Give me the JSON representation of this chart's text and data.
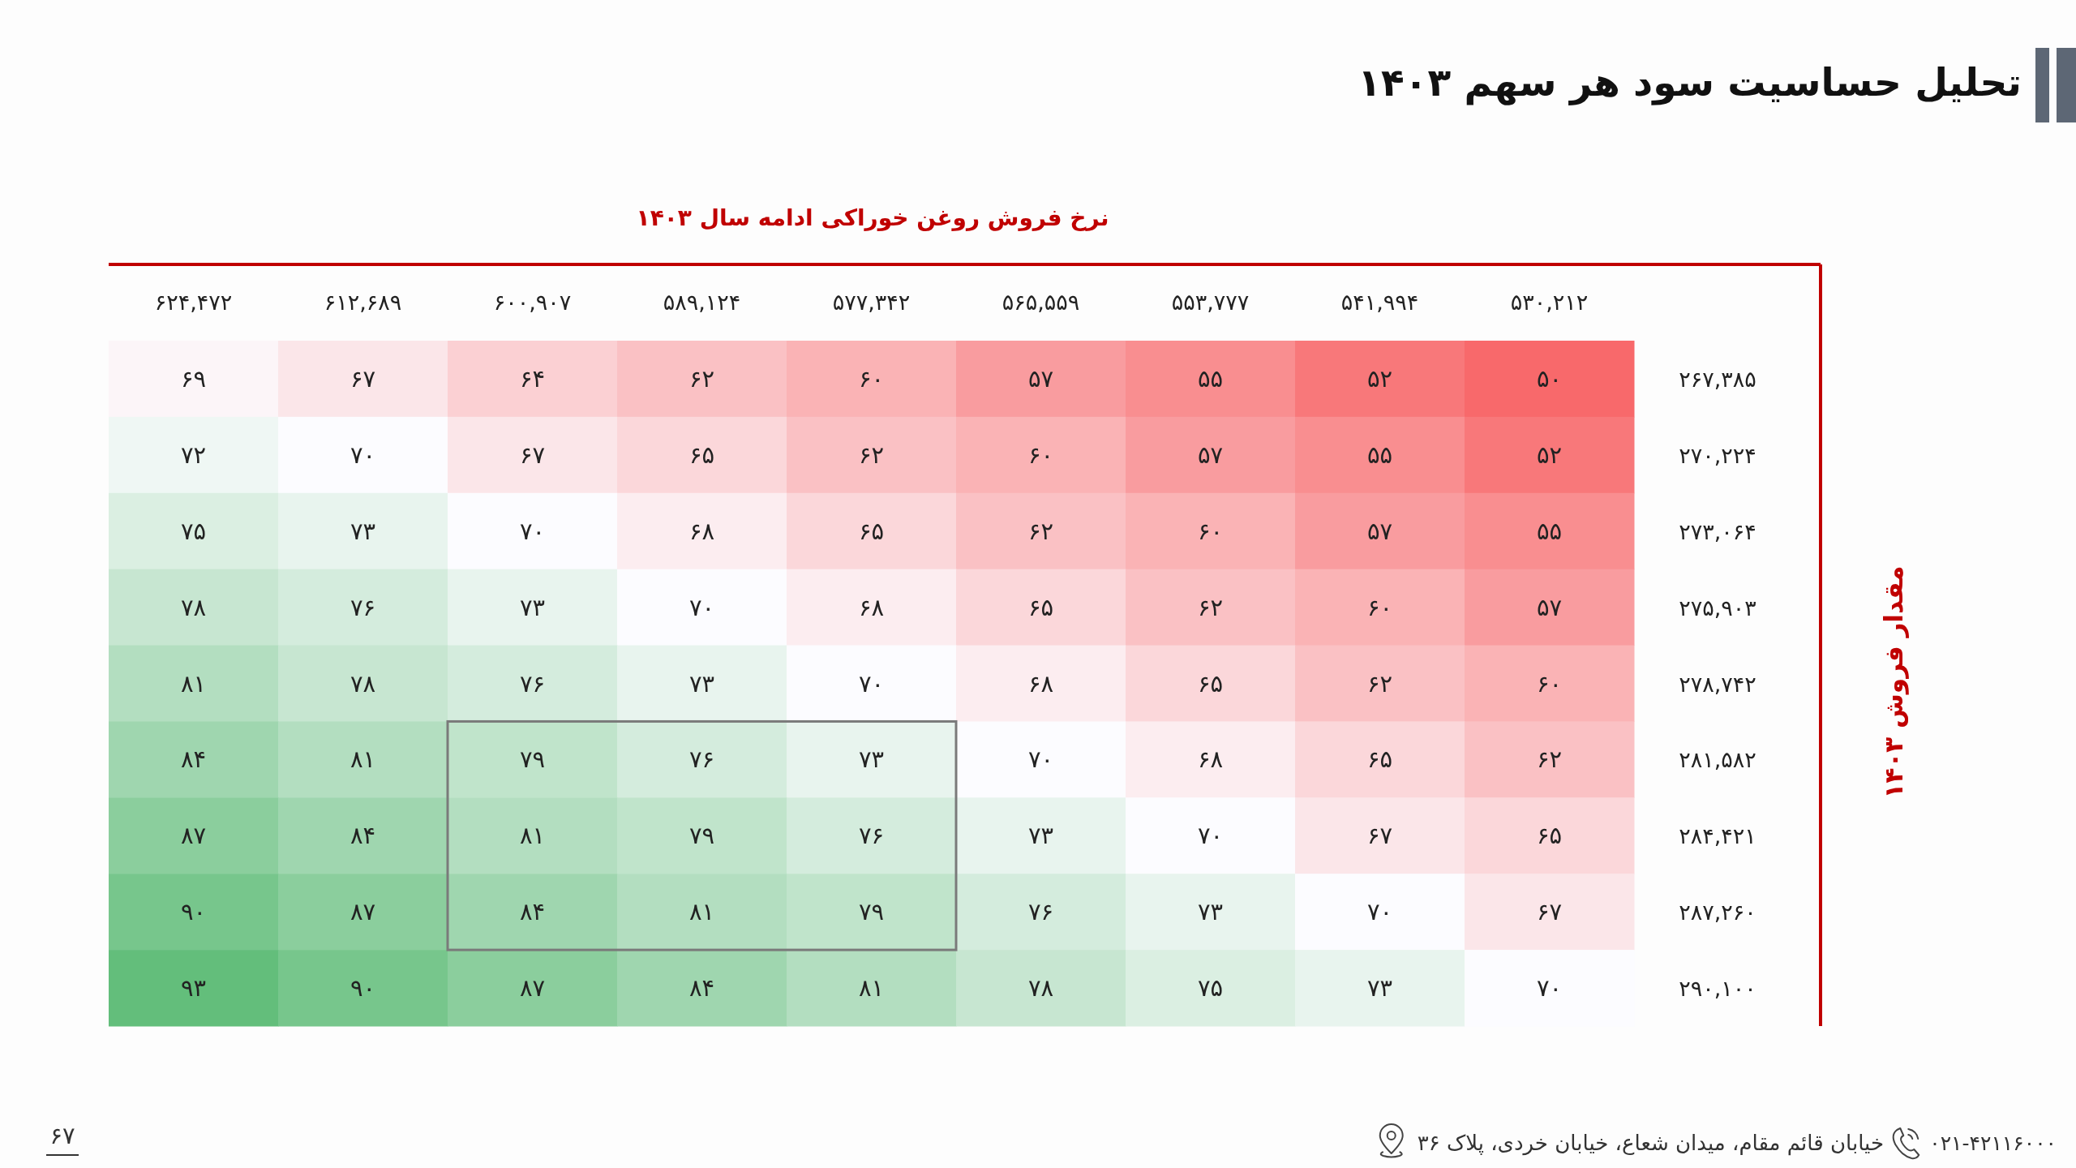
{
  "chart_data": {
    "type": "heatmap",
    "title": "تحلیل حساسیت سود هر سهم ۱۴۰۳",
    "xlabel": "نرخ فروش روغن خوراکی ادامه سال ۱۴۰۳",
    "ylabel": "مقدار فروش ۱۴۰۳",
    "categories": [
      "۶۲۴,۴۷۲",
      "۶۱۲,۶۸۹",
      "۶۰۰,۹۰۷",
      "۵۸۹,۱۲۴",
      "۵۷۷,۳۴۲",
      "۵۶۵,۵۵۹",
      "۵۵۳,۷۷۷",
      "۵۴۱,۹۹۴",
      "۵۳۰,۲۱۲"
    ],
    "y_categories": [
      "۲۶۷,۳۸۵",
      "۲۷۰,۲۲۴",
      "۲۷۳,۰۶۴",
      "۲۷۵,۹۰۳",
      "۲۷۸,۷۴۲",
      "۲۸۱,۵۸۲",
      "۲۸۴,۴۲۱",
      "۲۸۷,۲۶۰",
      "۲۹۰,۱۰۰"
    ],
    "cells": [
      [
        69,
        67,
        64,
        62,
        60,
        57,
        55,
        52,
        50
      ],
      [
        72,
        70,
        67,
        65,
        62,
        60,
        57,
        55,
        52
      ],
      [
        75,
        73,
        70,
        68,
        65,
        62,
        60,
        57,
        55
      ],
      [
        78,
        76,
        73,
        70,
        68,
        65,
        62,
        60,
        57
      ],
      [
        81,
        78,
        76,
        73,
        70,
        68,
        65,
        62,
        60
      ],
      [
        84,
        81,
        79,
        76,
        73,
        70,
        68,
        65,
        62
      ],
      [
        87,
        84,
        81,
        79,
        76,
        73,
        70,
        67,
        65
      ],
      [
        90,
        87,
        84,
        81,
        79,
        76,
        73,
        70,
        67
      ],
      [
        93,
        90,
        87,
        84,
        81,
        78,
        75,
        73,
        70
      ]
    ],
    "cell_labels": [
      [
        "۶۹",
        "۶۷",
        "۶۴",
        "۶۲",
        "۶۰",
        "۵۷",
        "۵۵",
        "۵۲",
        "۵۰"
      ],
      [
        "۷۲",
        "۷۰",
        "۶۷",
        "۶۵",
        "۶۲",
        "۶۰",
        "۵۷",
        "۵۵",
        "۵۲"
      ],
      [
        "۷۵",
        "۷۳",
        "۷۰",
        "۶۸",
        "۶۵",
        "۶۲",
        "۶۰",
        "۵۷",
        "۵۵"
      ],
      [
        "۷۸",
        "۷۶",
        "۷۳",
        "۷۰",
        "۶۸",
        "۶۵",
        "۶۲",
        "۶۰",
        "۵۷"
      ],
      [
        "۸۱",
        "۷۸",
        "۷۶",
        "۷۳",
        "۷۰",
        "۶۸",
        "۶۵",
        "۶۲",
        "۶۰"
      ],
      [
        "۸۴",
        "۸۱",
        "۷۹",
        "۷۶",
        "۷۳",
        "۷۰",
        "۶۸",
        "۶۵",
        "۶۲"
      ],
      [
        "۸۷",
        "۸۴",
        "۸۱",
        "۷۹",
        "۷۶",
        "۷۳",
        "۷۰",
        "۶۷",
        "۶۵"
      ],
      [
        "۹۰",
        "۸۷",
        "۸۴",
        "۸۱",
        "۷۹",
        "۷۶",
        "۷۳",
        "۷۰",
        "۶۷"
      ],
      [
        "۹۳",
        "۹۰",
        "۸۷",
        "۸۴",
        "۸۱",
        "۷۸",
        "۷۵",
        "۷۳",
        "۷۰"
      ]
    ],
    "colors": [
      "#f8696b",
      "#fcfcff",
      "#63be7b"
    ],
    "annotations": [
      "۰۲۱-۴۲۱۱۶۰۰۰",
      "خیابان قائم مقام، میدان شعاع، خیابان خردی، پلاک ۳۶",
      "۶۷"
    ]
  }
}
